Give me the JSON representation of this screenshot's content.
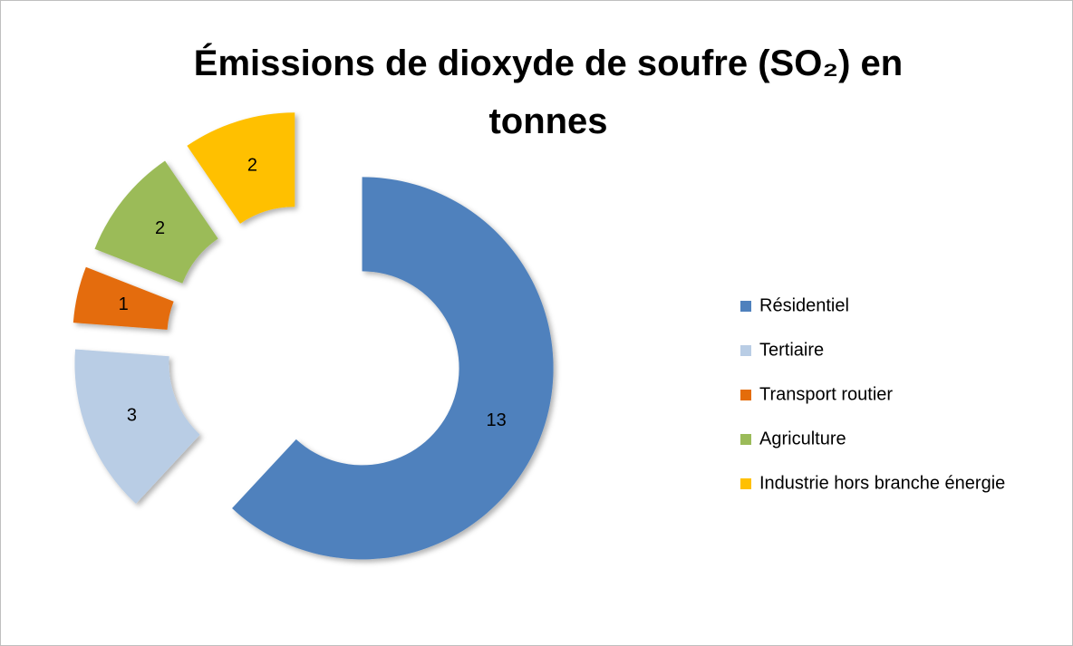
{
  "chart_data": {
    "type": "donut",
    "title": "Émissions de dioxyde de soufre (SO₂) en tonnes",
    "categories": [
      "Résidentiel",
      "Tertiaire",
      "Transport routier",
      "Agriculture",
      "Industrie hors branche énergie"
    ],
    "values": [
      13,
      3,
      1,
      2,
      2
    ],
    "colors": [
      "#4f81bd",
      "#b9cde5",
      "#e46c0a",
      "#9bbb59",
      "#ffc000"
    ],
    "legend": "right"
  }
}
